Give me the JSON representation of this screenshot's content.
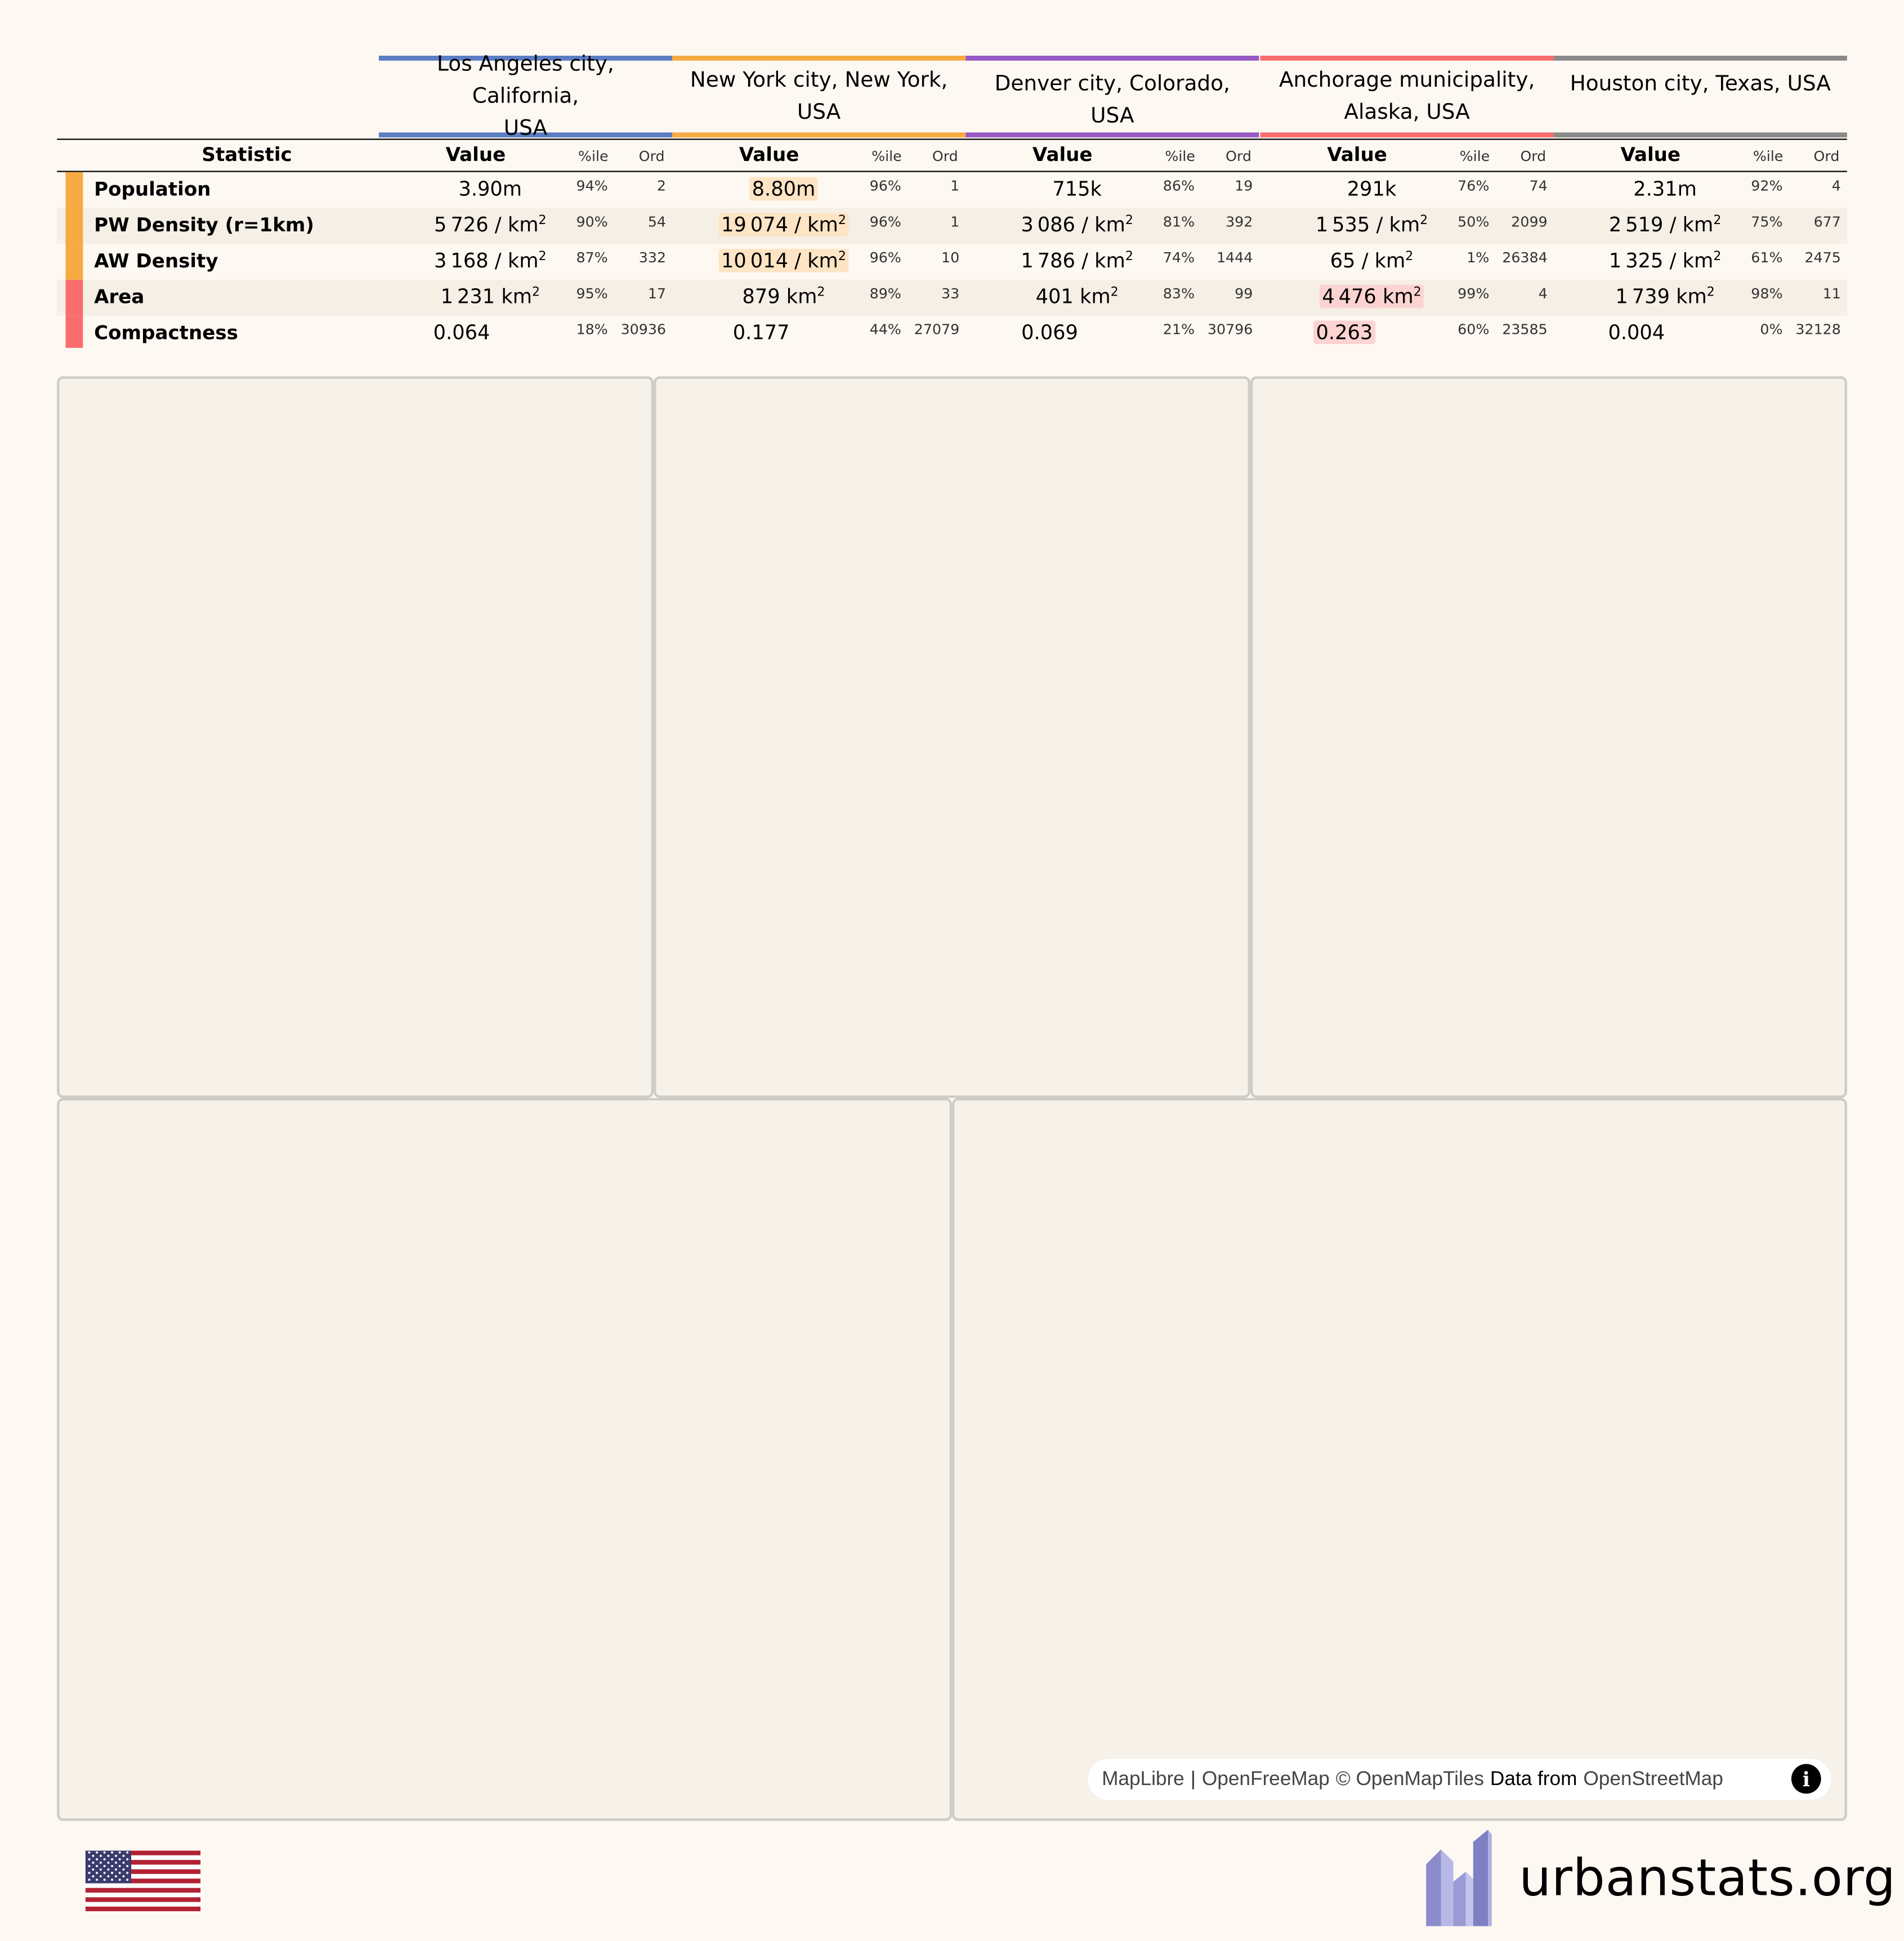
{
  "table": {
    "statistic_header": "Statistic",
    "value_header": "Value",
    "pct_header": "%ile",
    "ord_header": "Ord",
    "regions": [
      {
        "name_line1": "Los Angeles city, California,",
        "name_line2": "USA",
        "color": "#5a7dc3"
      },
      {
        "name_line1": "New York city, New York,",
        "name_line2": "USA",
        "color": "#f7aa41"
      },
      {
        "name_line1": "Denver city, Colorado, USA",
        "name_line2": "",
        "color": "#975ac3"
      },
      {
        "name_line1": "Anchorage municipality,",
        "name_line2": "Alaska, USA",
        "color": "#f96d6d"
      },
      {
        "name_line1": "Houston city, Texas, USA",
        "name_line2": "",
        "color": "#8a8a8a"
      }
    ],
    "rows": [
      {
        "name": "Population",
        "category_color": "#f7aa41",
        "cells": [
          {
            "num": "3.90",
            "unit": "m",
            "sup": "",
            "pct": "94%",
            "ord": "2",
            "hl": ""
          },
          {
            "num": "8.80",
            "unit": "m",
            "sup": "",
            "pct": "96%",
            "ord": "1",
            "hl": "#fde4c4"
          },
          {
            "num": "715",
            "unit": "k",
            "sup": "",
            "pct": "86%",
            "ord": "19",
            "hl": ""
          },
          {
            "num": "291",
            "unit": "k",
            "sup": "",
            "pct": "76%",
            "ord": "74",
            "hl": ""
          },
          {
            "num": "2.31",
            "unit": "m",
            "sup": "",
            "pct": "92%",
            "ord": "4",
            "hl": ""
          }
        ]
      },
      {
        "name": "PW Density (r=1km)",
        "category_color": "#f7aa41",
        "cells": [
          {
            "num": "5 726",
            "unit": " / km",
            "sup": "2",
            "pct": "90%",
            "ord": "54",
            "hl": ""
          },
          {
            "num": "19 074",
            "unit": " / km",
            "sup": "2",
            "pct": "96%",
            "ord": "1",
            "hl": "#fde4c4"
          },
          {
            "num": "3 086",
            "unit": " / km",
            "sup": "2",
            "pct": "81%",
            "ord": "392",
            "hl": ""
          },
          {
            "num": "1 535",
            "unit": " / km",
            "sup": "2",
            "pct": "50%",
            "ord": "2099",
            "hl": ""
          },
          {
            "num": "2 519",
            "unit": " / km",
            "sup": "2",
            "pct": "75%",
            "ord": "677",
            "hl": ""
          }
        ]
      },
      {
        "name": "AW Density",
        "category_color": "#f7aa41",
        "cells": [
          {
            "num": "3 168",
            "unit": " / km",
            "sup": "2",
            "pct": "87%",
            "ord": "332",
            "hl": ""
          },
          {
            "num": "10 014",
            "unit": " / km",
            "sup": "2",
            "pct": "96%",
            "ord": "10",
            "hl": "#fde4c4"
          },
          {
            "num": "1 786",
            "unit": " / km",
            "sup": "2",
            "pct": "74%",
            "ord": "1444",
            "hl": ""
          },
          {
            "num": "65",
            "unit": " / km",
            "sup": "2",
            "pct": "1%",
            "ord": "26384",
            "hl": ""
          },
          {
            "num": "1 325",
            "unit": " / km",
            "sup": "2",
            "pct": "61%",
            "ord": "2475",
            "hl": ""
          }
        ]
      },
      {
        "name": "Area",
        "category_color": "#f96d6d",
        "cells": [
          {
            "num": "1 231",
            "unit": " km",
            "sup": "2",
            "pct": "95%",
            "ord": "17",
            "hl": ""
          },
          {
            "num": "879",
            "unit": " km",
            "sup": "2",
            "pct": "89%",
            "ord": "33",
            "hl": ""
          },
          {
            "num": "401",
            "unit": " km",
            "sup": "2",
            "pct": "83%",
            "ord": "99",
            "hl": ""
          },
          {
            "num": "4 476",
            "unit": " km",
            "sup": "2",
            "pct": "99%",
            "ord": "4",
            "hl": "#fcd3d1"
          },
          {
            "num": "1 739",
            "unit": " km",
            "sup": "2",
            "pct": "98%",
            "ord": "11",
            "hl": ""
          }
        ]
      },
      {
        "name": "Compactness",
        "category_color": "#f96d6d",
        "cells": [
          {
            "num": "0.064",
            "unit": "",
            "sup": "",
            "pct": "18%",
            "ord": "30936",
            "hl": ""
          },
          {
            "num": "0.177",
            "unit": "",
            "sup": "",
            "pct": "44%",
            "ord": "27079",
            "hl": ""
          },
          {
            "num": "0.069",
            "unit": "",
            "sup": "",
            "pct": "21%",
            "ord": "30796",
            "hl": ""
          },
          {
            "num": "0.263",
            "unit": "",
            "sup": "",
            "pct": "60%",
            "ord": "23585",
            "hl": "#fcd3d1"
          },
          {
            "num": "0.004",
            "unit": "",
            "sup": "",
            "pct": "0%",
            "ord": "32128",
            "hl": ""
          }
        ]
      }
    ]
  },
  "map": {
    "attribution": {
      "maplibre": "MapLibre",
      "sep": "|",
      "openfreemap": "OpenFreeMap",
      "openmaptiles": "© OpenMapTiles",
      "data_from": "Data from",
      "osm": "OpenStreetMap"
    },
    "info_icon": "info-icon"
  },
  "footer": {
    "flag_icon": "us-flag-icon",
    "logo_icon": "urbanstats-logo-icon",
    "site_name": "urbanstats.org"
  }
}
